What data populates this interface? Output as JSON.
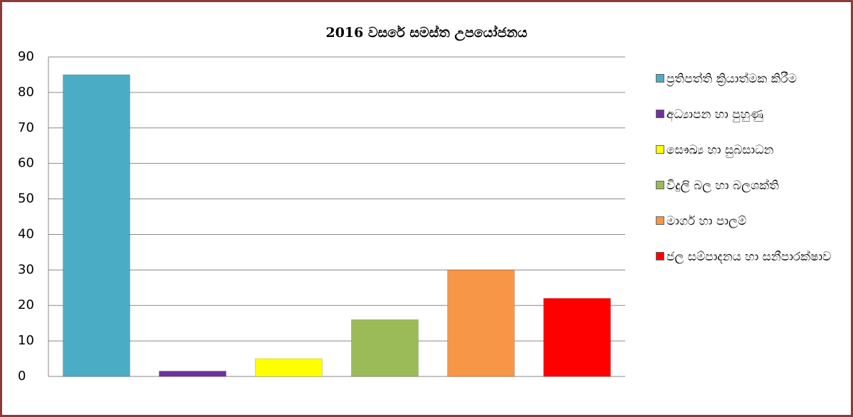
{
  "chart_data": {
    "type": "bar",
    "title": "2016 වසරේ සමස්ත උපයෝජනය",
    "categories": [
      "ප්‍රතිපත්ති ක්‍රියාත්මක කිරීම",
      "අධ්‍යාපන හා පුහුණු",
      "සෞඛ්‍ය හා සුබසාධන",
      "විදුලි බල හා බලශක්ති",
      "මාර්ග හා පාලම්",
      "ජල සම්පාදනය හා සනීපාරක්ෂාව"
    ],
    "values": [
      85,
      1.5,
      5,
      16,
      30,
      22
    ],
    "colors": [
      "#4bacc6",
      "#7030a0",
      "#ffff00",
      "#9bbb59",
      "#f79646",
      "#ff0000"
    ],
    "ylim": [
      0,
      90
    ],
    "yticks": [
      0,
      10,
      20,
      30,
      40,
      50,
      60,
      70,
      80,
      90
    ],
    "grid": true,
    "legend": "right"
  }
}
